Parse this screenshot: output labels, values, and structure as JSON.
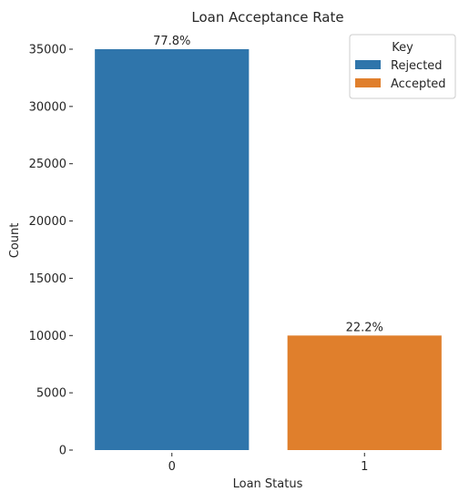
{
  "chart_data": {
    "type": "bar",
    "title": "Loan Acceptance Rate",
    "xlabel": "Loan Status",
    "ylabel": "Count",
    "categories": [
      "0",
      "1"
    ],
    "values": [
      35000,
      10000
    ],
    "data_labels": [
      "77.8%",
      "22.2%"
    ],
    "colors": [
      "#2f75ab",
      "#e07f2c"
    ],
    "ylim": [
      0,
      35000
    ],
    "yticks": [
      0,
      5000,
      10000,
      15000,
      20000,
      25000,
      30000,
      35000
    ],
    "grid": false,
    "legend": {
      "title": "Key",
      "placement": "top-right",
      "entries": [
        {
          "label": "Rejected",
          "color": "#2f75ab"
        },
        {
          "label": "Accepted",
          "color": "#e07f2c"
        }
      ]
    }
  }
}
